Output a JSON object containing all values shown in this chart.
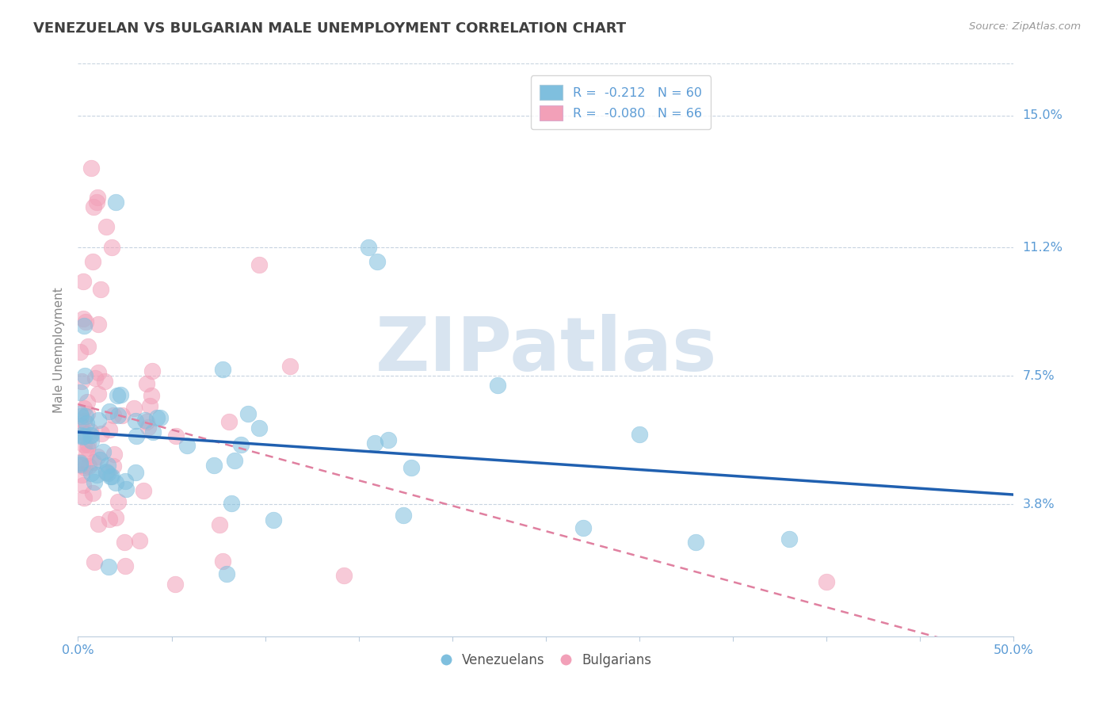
{
  "title": "VENEZUELAN VS BULGARIAN MALE UNEMPLOYMENT CORRELATION CHART",
  "source": "Source: ZipAtlas.com",
  "ylabel": "Male Unemployment",
  "xlim": [
    0.0,
    0.5
  ],
  "ylim": [
    0.0,
    0.165
  ],
  "yticks": [
    0.038,
    0.075,
    0.112,
    0.15
  ],
  "ytick_labels": [
    "3.8%",
    "7.5%",
    "11.2%",
    "15.0%"
  ],
  "legend_entry1": "R =  -0.212   N = 60",
  "legend_entry2": "R =  -0.080   N = 66",
  "legend_label1": "Venezuelans",
  "legend_label2": "Bulgarians",
  "color_blue": "#7fbfde",
  "color_pink": "#f2a0b8",
  "line_color_blue": "#2060b0",
  "line_color_pink": "#e080a0",
  "watermark": "ZIPatlas",
  "watermark_color": "#d8e4f0",
  "title_color": "#404040",
  "axis_label_color": "#5b9bd5",
  "grid_color": "#c8d4e0",
  "ven_intercept": 0.057,
  "ven_slope": -0.085,
  "bul_intercept": 0.058,
  "bul_slope": -0.13
}
